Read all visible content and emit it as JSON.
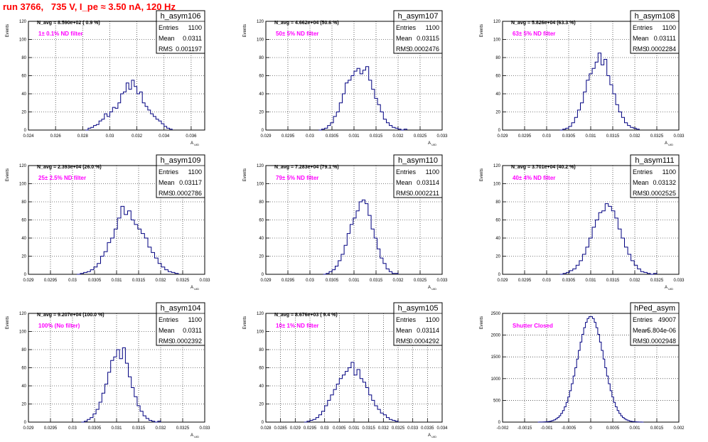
{
  "page_title": "run 3766,   735 V, I_pe ≈ 3.50 nA, 120 Hz",
  "colors": {
    "title": "#ff0000",
    "label": "#ff00ff",
    "line": "#000080",
    "grid": "#000000"
  },
  "chart_data": [
    {
      "type": "histogram",
      "name": "h_asym106",
      "navg": "N_avg = 8.590e+02 ( 0.9 %)",
      "label": "1± 0.1% ND filter",
      "stats": {
        "entries": "1100",
        "mean": "0.0311",
        "rms": "0.001197"
      },
      "xlabel": "A_UID",
      "ylabel": "Events",
      "xlim": [
        0.024,
        0.037
      ],
      "ylim": [
        0,
        120
      ],
      "xticks": [
        0.024,
        0.026,
        0.028,
        0.03,
        0.032,
        0.034,
        0.036
      ],
      "xtick_labels": [
        "0.024",
        "0.026",
        "0.028",
        "0.03",
        "0.032",
        "0.034",
        "0.036"
      ],
      "yticks": [
        0,
        20,
        40,
        60,
        80,
        100,
        120
      ],
      "bins": {
        "x0": 0.0282,
        "x1": 0.0346,
        "values": [
          0,
          2,
          3,
          5,
          6,
          10,
          12,
          18,
          15,
          20,
          25,
          24,
          30,
          40,
          42,
          52,
          45,
          55,
          48,
          40,
          42,
          30,
          26,
          22,
          18,
          15,
          12,
          10,
          7,
          4,
          2,
          1
        ]
      }
    },
    {
      "type": "histogram",
      "name": "h_asym107",
      "navg": "N_avg = 4.662e+04 (50.6 %)",
      "label": "50± 5% ND filter",
      "stats": {
        "entries": "1100",
        "mean": "0.03115",
        "rms": "0.0002476"
      },
      "xlabel": "A_UID",
      "ylabel": "Events",
      "xlim": [
        0.029,
        0.033
      ],
      "ylim": [
        0,
        120
      ],
      "xticks": [
        0.029,
        0.0295,
        0.03,
        0.0305,
        0.031,
        0.0315,
        0.032,
        0.0325,
        0.033
      ],
      "xtick_labels": [
        "0.029",
        "0.0295",
        "0.03",
        "0.0305",
        "0.031",
        "0.0315",
        "0.032",
        "0.0325",
        "0.033"
      ],
      "yticks": [
        0,
        20,
        40,
        60,
        80,
        100,
        120
      ],
      "bins": {
        "x0": 0.0302,
        "x1": 0.0322,
        "values": [
          0,
          1,
          2,
          5,
          8,
          15,
          20,
          30,
          40,
          52,
          55,
          60,
          65,
          68,
          62,
          66,
          70,
          55,
          45,
          35,
          28,
          20,
          12,
          8,
          5,
          3,
          2,
          1,
          0,
          1
        ]
      }
    },
    {
      "type": "histogram",
      "name": "h_asym108",
      "navg": "N_avg = 5.826e+04 (63.3 %)",
      "label": "63± 5% ND filter",
      "stats": {
        "entries": "1100",
        "mean": "0.03111",
        "rms": "0.0002284"
      },
      "xlabel": "A_UID",
      "ylabel": "Events",
      "xlim": [
        0.029,
        0.033
      ],
      "ylim": [
        0,
        120
      ],
      "xticks": [
        0.029,
        0.0295,
        0.03,
        0.0305,
        0.031,
        0.0315,
        0.032,
        0.0325,
        0.033
      ],
      "xtick_labels": [
        "0.029",
        "0.0295",
        "0.03",
        "0.0305",
        "0.031",
        "0.0315",
        "0.032",
        "0.0325",
        "0.033"
      ],
      "yticks": [
        0,
        20,
        40,
        60,
        80,
        100,
        120
      ],
      "bins": {
        "x0": 0.0303,
        "x1": 0.0321,
        "values": [
          0,
          1,
          2,
          4,
          8,
          14,
          22,
          30,
          42,
          55,
          62,
          68,
          75,
          85,
          72,
          78,
          60,
          50,
          40,
          28,
          20,
          14,
          8,
          5,
          3,
          2,
          1
        ]
      }
    },
    {
      "type": "histogram",
      "name": "h_asym109",
      "navg": "N_avg = 2.393e+04 (26.0 %)",
      "label": "25± 2.5% ND filter",
      "stats": {
        "entries": "1100",
        "mean": "0.03117",
        "rms": "0.0002786"
      },
      "xlabel": "A_UID",
      "ylabel": "Events",
      "xlim": [
        0.029,
        0.033
      ],
      "ylim": [
        0,
        120
      ],
      "xticks": [
        0.029,
        0.0295,
        0.03,
        0.0305,
        0.031,
        0.0315,
        0.032,
        0.0325,
        0.033
      ],
      "xtick_labels": [
        "0.029",
        "0.0295",
        "0.03",
        "0.0305",
        "0.031",
        "0.0315",
        "0.032",
        "0.0325",
        "0.033"
      ],
      "yticks": [
        0,
        20,
        40,
        60,
        80,
        100,
        120
      ],
      "bins": {
        "x0": 0.0301,
        "x1": 0.0324,
        "values": [
          0,
          1,
          2,
          3,
          5,
          8,
          12,
          20,
          25,
          35,
          40,
          50,
          62,
          75,
          66,
          70,
          60,
          55,
          50,
          45,
          40,
          30,
          24,
          18,
          12,
          8,
          5,
          3,
          2,
          1
        ]
      }
    },
    {
      "type": "histogram",
      "name": "h_asym110",
      "navg": "N_avg = 7.283e+04 (79.1 %)",
      "label": "79± 5% ND filter",
      "stats": {
        "entries": "1100",
        "mean": "0.03114",
        "rms": "0.0002211"
      },
      "xlabel": "A_UID",
      "ylabel": "Events",
      "xlim": [
        0.029,
        0.033
      ],
      "ylim": [
        0,
        120
      ],
      "xticks": [
        0.029,
        0.0295,
        0.03,
        0.0305,
        0.031,
        0.0315,
        0.032,
        0.0325,
        0.033
      ],
      "xtick_labels": [
        "0.029",
        "0.0295",
        "0.03",
        "0.0305",
        "0.031",
        "0.0315",
        "0.032",
        "0.0325",
        "0.033"
      ],
      "yticks": [
        0,
        20,
        40,
        60,
        80,
        100,
        120
      ],
      "bins": {
        "x0": 0.0303,
        "x1": 0.032,
        "values": [
          0,
          1,
          3,
          5,
          9,
          15,
          22,
          32,
          45,
          55,
          62,
          70,
          80,
          82,
          78,
          65,
          50,
          40,
          28,
          18,
          12,
          6,
          3,
          1,
          1
        ]
      }
    },
    {
      "type": "histogram",
      "name": "h_asym111",
      "navg": "N_avg = 3.701e+04 (40.2 %)",
      "label": "40± 4% ND filter",
      "stats": {
        "entries": "1100",
        "mean": "0.03132",
        "rms": "0.0002525"
      },
      "xlabel": "A_UID",
      "ylabel": "Events",
      "xlim": [
        0.029,
        0.033
      ],
      "ylim": [
        0,
        120
      ],
      "xticks": [
        0.029,
        0.0295,
        0.03,
        0.0305,
        0.031,
        0.0315,
        0.032,
        0.0325,
        0.033
      ],
      "xtick_labels": [
        "0.029",
        "0.0295",
        "0.03",
        "0.0305",
        "0.031",
        "0.0315",
        "0.032",
        "0.0325",
        "0.033"
      ],
      "yticks": [
        0,
        20,
        40,
        60,
        80,
        100,
        120
      ],
      "bins": {
        "x0": 0.0303,
        "x1": 0.0325,
        "values": [
          0,
          1,
          2,
          4,
          6,
          10,
          15,
          22,
          30,
          40,
          52,
          60,
          68,
          70,
          78,
          75,
          70,
          62,
          50,
          40,
          30,
          22,
          15,
          10,
          6,
          3,
          2,
          1,
          0,
          1
        ]
      }
    },
    {
      "type": "histogram",
      "name": "h_asym104",
      "navg": "N_avg = 9.207e+04 (100.0 %)",
      "label": "100% (No filter)",
      "stats": {
        "entries": "1100",
        "mean": "0.0311",
        "rms": "0.0002392"
      },
      "xlabel": "A_UID",
      "ylabel": "Events",
      "xlim": [
        0.029,
        0.033
      ],
      "ylim": [
        0,
        120
      ],
      "xticks": [
        0.029,
        0.0295,
        0.03,
        0.0305,
        0.031,
        0.0315,
        0.032,
        0.0325,
        0.033
      ],
      "xtick_labels": [
        "0.029",
        "0.0295",
        "0.03",
        "0.0305",
        "0.031",
        "0.0315",
        "0.032",
        "0.0325",
        "0.033"
      ],
      "yticks": [
        0,
        20,
        40,
        60,
        80,
        100,
        120
      ],
      "bins": {
        "x0": 0.0302,
        "x1": 0.032,
        "values": [
          0,
          1,
          3,
          5,
          9,
          14,
          22,
          32,
          42,
          55,
          68,
          72,
          80,
          70,
          82,
          65,
          50,
          38,
          28,
          18,
          12,
          7,
          4,
          2,
          1,
          0,
          1
        ]
      }
    },
    {
      "type": "histogram",
      "name": "h_asym105",
      "navg": "N_avg = 8.676e+03 ( 9.4 %)",
      "label": "10± 1% ND filter",
      "stats": {
        "entries": "1100",
        "mean": "0.03114",
        "rms": "0.0004292"
      },
      "xlabel": "A_UID",
      "ylabel": "Events",
      "xlim": [
        0.028,
        0.034
      ],
      "ylim": [
        0,
        120
      ],
      "xticks": [
        0.028,
        0.0285,
        0.029,
        0.0295,
        0.03,
        0.0305,
        0.031,
        0.0315,
        0.032,
        0.0325,
        0.033,
        0.0335,
        0.034
      ],
      "xtick_labels": [
        "0.028",
        "0.0285",
        "0.029",
        "0.0295",
        "0.03",
        "0.0305",
        "0.031",
        "0.0315",
        "0.032",
        "0.0325",
        "0.033",
        "0.0335",
        "0.034"
      ],
      "yticks": [
        0,
        20,
        40,
        60,
        80,
        100,
        120
      ],
      "bins": {
        "x0": 0.0293,
        "x1": 0.0325,
        "values": [
          0,
          1,
          2,
          3,
          5,
          8,
          12,
          18,
          24,
          30,
          36,
          42,
          48,
          52,
          56,
          60,
          66,
          52,
          58,
          48,
          44,
          38,
          30,
          24,
          18,
          14,
          10,
          8,
          5,
          3,
          2,
          1
        ]
      }
    },
    {
      "type": "histogram",
      "name": "hPed_asym",
      "navg": "",
      "label": "Shutter Closed",
      "stats": {
        "entries": "49007",
        "mean": "-5.804e-06",
        "rms": "0.0002948"
      },
      "xlabel": "",
      "ylabel": "Events",
      "xlim": [
        -0.002,
        0.002
      ],
      "ylim": [
        0,
        2500
      ],
      "xticks": [
        -0.002,
        -0.0015,
        -0.001,
        -0.0005,
        0,
        0.0005,
        0.001,
        0.0015,
        0.002
      ],
      "xtick_labels": [
        "-0.002",
        "-0.0015",
        "-0.001",
        "-0.0005",
        "0",
        "0.0005",
        "0.001",
        "0.0015",
        "0.002"
      ],
      "yticks": [
        0,
        500,
        1000,
        1500,
        2000,
        2500
      ],
      "gaussian": {
        "amp": 2430,
        "mean": 0.0,
        "sigma": 0.000295,
        "x0": -0.0012,
        "x1": 0.0012,
        "nbins": 60
      }
    }
  ]
}
